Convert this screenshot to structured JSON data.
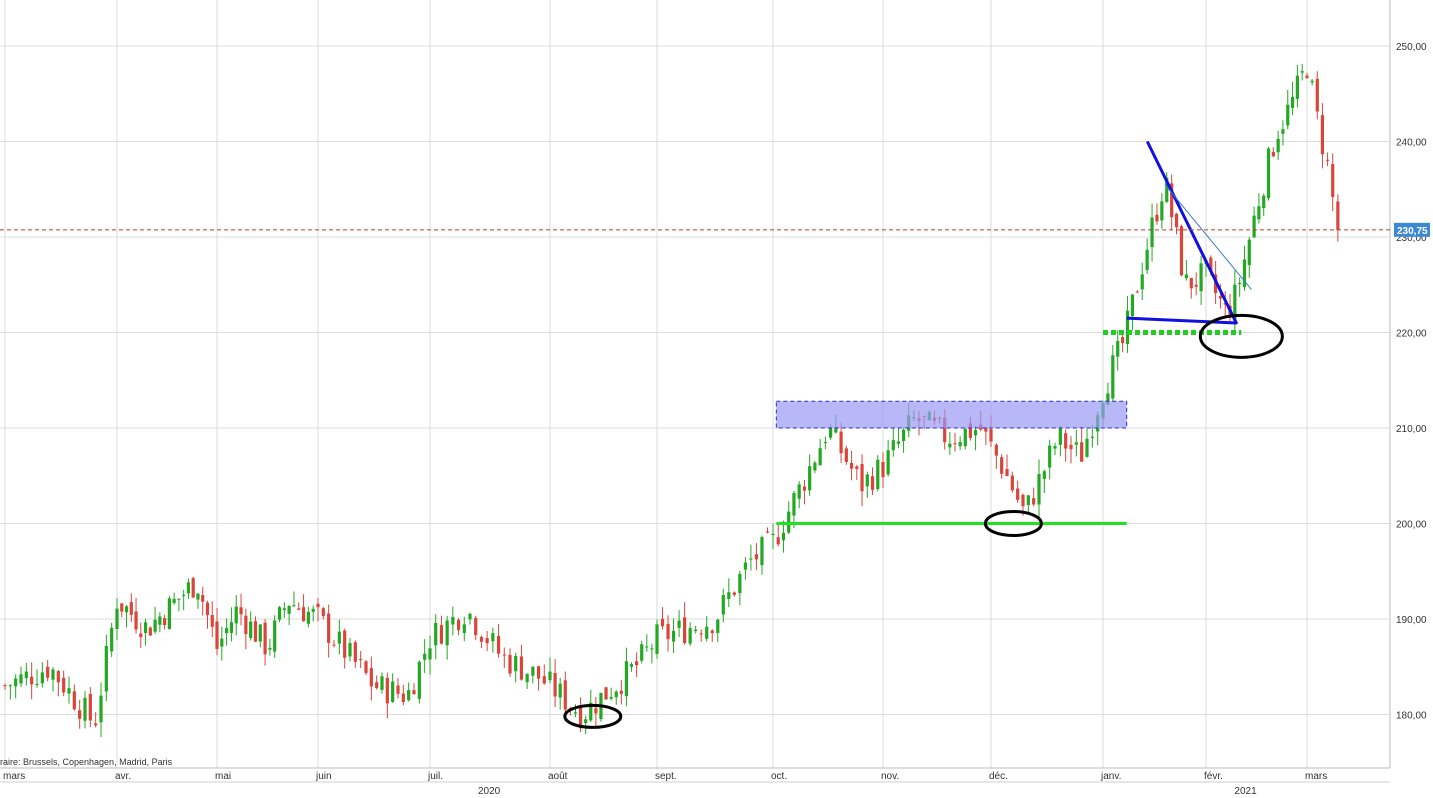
{
  "chart_data": {
    "type": "candlestick",
    "y_axis": {
      "range": [
        166,
        255
      ],
      "ticks": [
        {
          "value": 180,
          "label": "180,00"
        },
        {
          "value": 190,
          "label": "190,00"
        },
        {
          "value": 200,
          "label": "200,00"
        },
        {
          "value": 210,
          "label": "210,00"
        },
        {
          "value": 220,
          "label": "220,00"
        },
        {
          "value": 230,
          "label": "230,00"
        },
        {
          "value": 240,
          "label": "240,00"
        },
        {
          "value": 250,
          "label": "250,00"
        }
      ]
    },
    "x_axis": {
      "months": [
        "mars",
        "avr.",
        "mai",
        "juin",
        "juil.",
        "août",
        "sept.",
        "oct.",
        "nov.",
        "déc.",
        "janv.",
        "févr.",
        "mars"
      ],
      "years": [
        {
          "label": "2020",
          "month_index": 4.5
        },
        {
          "label": "2021",
          "month_index": 11.4
        }
      ]
    },
    "last_price": {
      "value": 230.75,
      "label": "230,75",
      "color": "#3b8ad6"
    },
    "trading_hours_label": "raire: Brussels, Copenhagen, Madrid, Paris",
    "anchors": [
      [
        0,
        183
      ],
      [
        0.4,
        185
      ],
      [
        0.8,
        179
      ],
      [
        1.0,
        192
      ],
      [
        1.3,
        189
      ],
      [
        1.6,
        192
      ],
      [
        1.8,
        194
      ],
      [
        2.0,
        187
      ],
      [
        2.2,
        191
      ],
      [
        2.5,
        187
      ],
      [
        2.7,
        192
      ],
      [
        3.0,
        190
      ],
      [
        3.5,
        183
      ],
      [
        3.8,
        182
      ],
      [
        4.0,
        188
      ],
      [
        4.3,
        191
      ],
      [
        4.6,
        186
      ],
      [
        4.9,
        184
      ],
      [
        5.3,
        180
      ],
      [
        5.5,
        182
      ],
      [
        5.8,
        185
      ],
      [
        6.0,
        188
      ],
      [
        6.5,
        190
      ],
      [
        6.8,
        196
      ],
      [
        7.0,
        198
      ],
      [
        7.3,
        205
      ],
      [
        7.5,
        210
      ],
      [
        7.8,
        204
      ],
      [
        8.0,
        206
      ],
      [
        8.3,
        211
      ],
      [
        8.6,
        209
      ],
      [
        8.9,
        210
      ],
      [
        9.1,
        206
      ],
      [
        9.3,
        201
      ],
      [
        9.6,
        209
      ],
      [
        9.8,
        207
      ],
      [
        10.0,
        214
      ],
      [
        10.2,
        219
      ],
      [
        10.4,
        228
      ],
      [
        10.6,
        236
      ],
      [
        10.8,
        225
      ],
      [
        11.0,
        226
      ],
      [
        11.2,
        222
      ],
      [
        11.3,
        224
      ],
      [
        11.5,
        233
      ],
      [
        11.7,
        241
      ],
      [
        11.85,
        244
      ],
      [
        12.0,
        248
      ],
      [
        12.1,
        242
      ],
      [
        12.2,
        237
      ],
      [
        12.25,
        233
      ],
      [
        12.33,
        230.75
      ]
    ],
    "annotations": {
      "range_box": {
        "x_start": 7.03,
        "x_end": 10.23,
        "y_low": 210,
        "y_high": 212.8,
        "fill": "#9a9af5",
        "stroke": "#2b2bd6"
      },
      "support_line": {
        "x_start": 7.03,
        "x_end": 10.23,
        "y": 200,
        "color": "#22e022"
      },
      "dotted_support": {
        "x_start": 10.0,
        "x_end": 11.35,
        "y": 220,
        "color": "#22cc22"
      },
      "triangle": {
        "points": [
          [
            10.43,
            240
          ],
          [
            11.3,
            221
          ],
          [
            10.23,
            221.5
          ]
        ],
        "color": "#1010e0"
      },
      "triangle_thin_line": {
        "points": [
          [
            10.6,
            235.5
          ],
          [
            11.45,
            224.5
          ]
        ],
        "color": "#3a7cc9"
      },
      "ellipses": [
        {
          "x": 5.4,
          "y": 179.8,
          "color": "#000000"
        },
        {
          "x": 9.2,
          "y": 200,
          "color": "#000000"
        },
        {
          "x": 11.35,
          "y": 219.6,
          "color": "#000000"
        }
      ],
      "last_price_line_color": "#c0392b",
      "up_color": "#22a822",
      "down_color": "#d9453a"
    }
  }
}
